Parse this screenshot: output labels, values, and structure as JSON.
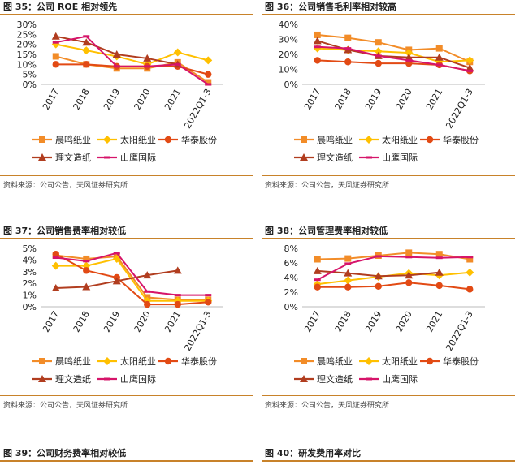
{
  "colors": {
    "accent_rule": "#c8822a",
    "series": [
      "#f28c28",
      "#ffc000",
      "#e24a14",
      "#b13d1f",
      "#d6146a"
    ]
  },
  "source_text": "资料来源：公司公告，天风证券研究所",
  "bottom": {
    "left_title": "图 39：公司财务费率相对较低",
    "right_title": "图 40：研发费用率对比"
  },
  "chart_data": [
    {
      "id": "fig35",
      "title": "图 35：公司 ROE 相对领先",
      "type": "line",
      "categories": [
        "2017",
        "2018",
        "2019",
        "2020",
        "2021",
        "2022Q1-3"
      ],
      "ylim": [
        0,
        30
      ],
      "yticks": [
        0,
        5,
        10,
        15,
        20,
        25,
        30
      ],
      "ytick_labels": [
        "0%",
        "5%",
        "10%",
        "15%",
        "20%",
        "25%",
        "30%"
      ],
      "series": [
        {
          "name": "晨鸣纸业",
          "marker": "square",
          "values": [
            14,
            10,
            8,
            8,
            11,
            1
          ]
        },
        {
          "name": "太阳纸业",
          "marker": "diamond",
          "values": [
            20,
            17,
            14,
            10,
            16,
            12
          ]
        },
        {
          "name": "华泰股份",
          "marker": "circle",
          "values": [
            10,
            10,
            9,
            9,
            9,
            5
          ]
        },
        {
          "name": "理文造纸",
          "marker": "triangle",
          "values": [
            24,
            21,
            15,
            13,
            10,
            null
          ]
        },
        {
          "name": "山鹰国际",
          "marker": "dash",
          "values": [
            21,
            24,
            9,
            9,
            10,
            0
          ]
        }
      ]
    },
    {
      "id": "fig36",
      "title": "图 36：公司销售毛利率相对较高",
      "type": "line",
      "categories": [
        "2017",
        "2018",
        "2019",
        "2020",
        "2021",
        "2022Q1-3"
      ],
      "ylim": [
        0,
        40
      ],
      "yticks": [
        0,
        10,
        20,
        30,
        40
      ],
      "ytick_labels": [
        "0%",
        "10%",
        "20%",
        "30%",
        "40%"
      ],
      "series": [
        {
          "name": "晨鸣纸业",
          "marker": "square",
          "values": [
            33,
            31,
            28,
            23,
            24,
            15
          ]
        },
        {
          "name": "太阳纸业",
          "marker": "diamond",
          "values": [
            24,
            23,
            22,
            21,
            15,
            16
          ]
        },
        {
          "name": "华泰股份",
          "marker": "circle",
          "values": [
            16,
            15,
            14,
            14,
            13,
            9
          ]
        },
        {
          "name": "理文造纸",
          "marker": "triangle",
          "values": [
            29,
            23,
            19,
            18,
            18,
            11
          ]
        },
        {
          "name": "山鹰国际",
          "marker": "dash",
          "values": [
            25,
            24,
            19,
            16,
            13,
            9
          ]
        }
      ]
    },
    {
      "id": "fig37",
      "title": "图 37：公司销售费率相对较低",
      "type": "line",
      "categories": [
        "2017",
        "2018",
        "2019",
        "2020",
        "2021",
        "2022Q1-3"
      ],
      "ylim": [
        0,
        5
      ],
      "yticks": [
        0,
        1,
        2,
        3,
        4,
        5
      ],
      "ytick_labels": [
        "0%",
        "1%",
        "2%",
        "3%",
        "4%",
        "5%"
      ],
      "series": [
        {
          "name": "晨鸣纸业",
          "marker": "square",
          "values": [
            4.4,
            4.1,
            4.3,
            0.8,
            0.6,
            0.6
          ]
        },
        {
          "name": "太阳纸业",
          "marker": "diamond",
          "values": [
            3.5,
            3.5,
            4.1,
            0.5,
            0.5,
            0.5
          ]
        },
        {
          "name": "华泰股份",
          "marker": "circle",
          "values": [
            4.5,
            3.1,
            2.5,
            0.2,
            0.2,
            0.4
          ]
        },
        {
          "name": "理文造纸",
          "marker": "triangle",
          "values": [
            1.6,
            1.7,
            2.2,
            2.7,
            3.1,
            null
          ]
        },
        {
          "name": "山鹰国际",
          "marker": "dash",
          "values": [
            4.2,
            3.9,
            4.6,
            1.3,
            1.0,
            1.0
          ]
        }
      ]
    },
    {
      "id": "fig38",
      "title": "图 38：公司管理费率相对较低",
      "type": "line",
      "categories": [
        "2017",
        "2018",
        "2019",
        "2020",
        "2021",
        "2022Q1-3"
      ],
      "ylim": [
        0,
        8
      ],
      "yticks": [
        0,
        2,
        4,
        6,
        8
      ],
      "ytick_labels": [
        "0%",
        "2%",
        "4%",
        "6%",
        "8%"
      ],
      "series": [
        {
          "name": "晨鸣纸业",
          "marker": "square",
          "values": [
            6.5,
            6.6,
            7.0,
            7.4,
            7.2,
            6.5
          ]
        },
        {
          "name": "太阳纸业",
          "marker": "diamond",
          "values": [
            3.1,
            3.6,
            4.1,
            4.6,
            4.3,
            4.7
          ]
        },
        {
          "name": "华泰股份",
          "marker": "circle",
          "values": [
            2.7,
            2.7,
            2.8,
            3.3,
            2.9,
            2.4
          ]
        },
        {
          "name": "理文造纸",
          "marker": "triangle",
          "values": [
            4.9,
            4.6,
            4.2,
            4.3,
            4.7,
            null
          ]
        },
        {
          "name": "山鹰国际",
          "marker": "dash",
          "values": [
            3.7,
            5.9,
            6.9,
            6.8,
            6.7,
            6.8
          ]
        }
      ]
    }
  ]
}
